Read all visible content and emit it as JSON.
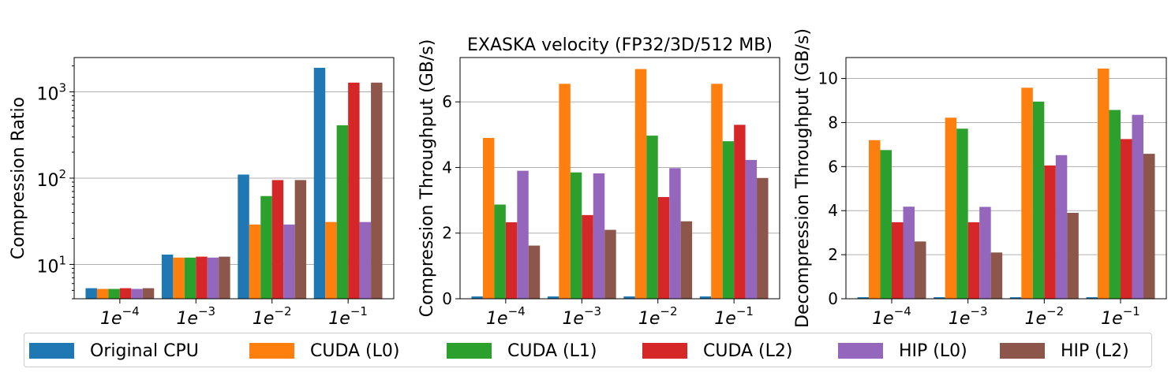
{
  "figure_title": "EXASKA velocity (FP32/3D/512 MB)",
  "series_colors": [
    "#1f77b4",
    "#ff7f0e",
    "#2ca02c",
    "#d62728",
    "#9467bd",
    "#8c564b"
  ],
  "legend": [
    "Original CPU",
    "CUDA (L0)",
    "CUDA (L1)",
    "CUDA (L2)",
    "HIP (L0)",
    "HIP (L2)"
  ],
  "chart_data": [
    {
      "type": "bar",
      "title": "",
      "xlabel": "",
      "ylabel": "Compression Ratio",
      "yscale": "log",
      "ylim": [
        4,
        2500
      ],
      "yticks": [
        10,
        100,
        1000
      ],
      "ytick_labels": [
        {
          "base": "10",
          "exp": "1"
        },
        {
          "base": "10",
          "exp": "2"
        },
        {
          "base": "10",
          "exp": "3"
        }
      ],
      "grid": "y",
      "categories": [
        {
          "base": "1e",
          "exp": "−4"
        },
        {
          "base": "1e",
          "exp": "−3"
        },
        {
          "base": "1e",
          "exp": "−2"
        },
        {
          "base": "1e",
          "exp": "−1"
        }
      ],
      "series": [
        {
          "name": "Original CPU",
          "values": [
            5.3,
            13.0,
            110,
            1900
          ]
        },
        {
          "name": "CUDA (L0)",
          "values": [
            5.2,
            12.0,
            29,
            31
          ]
        },
        {
          "name": "CUDA (L1)",
          "values": [
            5.2,
            12.0,
            62,
            410
          ]
        },
        {
          "name": "CUDA (L2)",
          "values": [
            5.3,
            12.3,
            95,
            1280
          ]
        },
        {
          "name": "HIP (L0)",
          "values": [
            5.2,
            12.0,
            29,
            31
          ]
        },
        {
          "name": "HIP (L2)",
          "values": [
            5.3,
            12.3,
            95,
            1280
          ]
        }
      ]
    },
    {
      "type": "bar",
      "title": "EXASKA velocity (FP32/3D/512 MB)",
      "xlabel": "",
      "ylabel": "Compression Throughput (GB/s)",
      "yscale": "linear",
      "ylim": [
        0,
        7.35
      ],
      "yticks": [
        0,
        2,
        4,
        6
      ],
      "ytick_labels": [
        "0",
        "2",
        "4",
        "6"
      ],
      "grid": "y",
      "categories": [
        {
          "base": "1e",
          "exp": "−4"
        },
        {
          "base": "1e",
          "exp": "−3"
        },
        {
          "base": "1e",
          "exp": "−2"
        },
        {
          "base": "1e",
          "exp": "−1"
        }
      ],
      "series": [
        {
          "name": "Original CPU",
          "values": [
            0.07,
            0.07,
            0.07,
            0.07
          ]
        },
        {
          "name": "CUDA (L0)",
          "values": [
            4.9,
            6.55,
            7.0,
            6.55
          ]
        },
        {
          "name": "CUDA (L1)",
          "values": [
            2.87,
            3.85,
            4.97,
            4.8
          ]
        },
        {
          "name": "CUDA (L2)",
          "values": [
            2.33,
            2.55,
            3.1,
            5.3
          ]
        },
        {
          "name": "HIP (L0)",
          "values": [
            3.9,
            3.82,
            3.98,
            4.23
          ]
        },
        {
          "name": "HIP (L2)",
          "values": [
            1.62,
            2.1,
            2.36,
            3.68
          ]
        }
      ]
    },
    {
      "type": "bar",
      "title": "",
      "xlabel": "",
      "ylabel": "Decompression Throughput (GB/s)",
      "yscale": "linear",
      "ylim": [
        0,
        10.95
      ],
      "yticks": [
        0,
        2,
        4,
        6,
        8,
        10
      ],
      "ytick_labels": [
        "0",
        "2",
        "4",
        "6",
        "8",
        "10"
      ],
      "grid": "y",
      "categories": [
        {
          "base": "1e",
          "exp": "−4"
        },
        {
          "base": "1e",
          "exp": "−3"
        },
        {
          "base": "1e",
          "exp": "−2"
        },
        {
          "base": "1e",
          "exp": "−1"
        }
      ],
      "series": [
        {
          "name": "Original CPU",
          "values": [
            0.07,
            0.07,
            0.07,
            0.07
          ]
        },
        {
          "name": "CUDA (L0)",
          "values": [
            7.2,
            8.22,
            9.58,
            10.45
          ]
        },
        {
          "name": "CUDA (L1)",
          "values": [
            6.75,
            7.72,
            8.95,
            8.57
          ]
        },
        {
          "name": "CUDA (L2)",
          "values": [
            3.47,
            3.47,
            6.05,
            7.25
          ]
        },
        {
          "name": "HIP (L0)",
          "values": [
            4.18,
            4.17,
            6.52,
            8.35
          ]
        },
        {
          "name": "HIP (L2)",
          "values": [
            2.6,
            2.1,
            3.9,
            6.58
          ]
        }
      ]
    }
  ]
}
